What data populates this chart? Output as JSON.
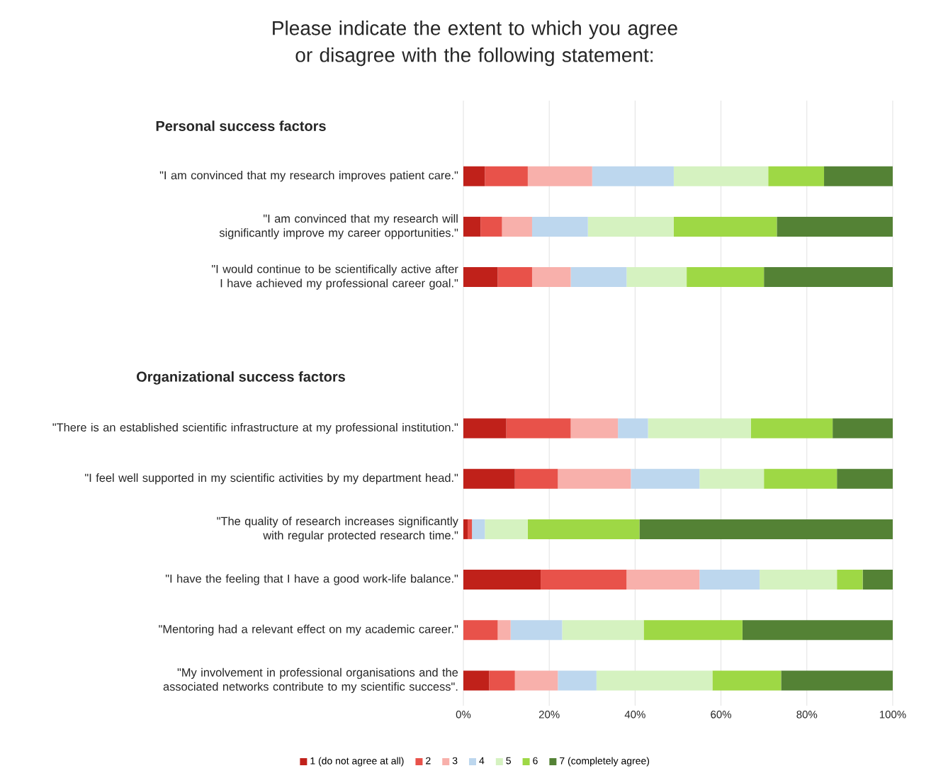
{
  "chart_data": {
    "type": "bar",
    "orientation": "horizontal",
    "stacked": true,
    "title": "Please indicate the extent to which you agree or disagree with the following statement:",
    "annotations": [
      "Personal success factors",
      "Organizational success factors"
    ],
    "categories": [
      null,
      "\"I am convinced that my research improves patient care.\"",
      "\"I am convinced that my research will significantly improve my career opportunities.\"",
      "\"I would continue to be scientifically active after I have achieved my professional career goal.\"",
      null,
      null,
      "\"There is an established scientific infrastructure at my professional institution.\"",
      "\"I feel well supported in my scientific activities by my department head.\"",
      "\"The quality of research increases significantly with regular protected research time.\"",
      "\"I have the feeling that I have a good work-life balance.\"",
      "\"Mentoring had a relevant effect on my academic career.\"",
      "\"My involvement in professional organisations and the associated networks contribute to my scientific success\"."
    ],
    "series": [
      {
        "name": "1 (do not agree at all)",
        "color": "#c0211a",
        "values": [
          null,
          5,
          4,
          8,
          null,
          null,
          10,
          12,
          1,
          18,
          0,
          6
        ]
      },
      {
        "name": "2",
        "color": "#e8524a",
        "values": [
          null,
          10,
          5,
          8,
          null,
          null,
          15,
          10,
          1,
          20,
          8,
          6
        ]
      },
      {
        "name": "3",
        "color": "#f8b0ab",
        "values": [
          null,
          15,
          7,
          9,
          null,
          null,
          11,
          17,
          0,
          17,
          3,
          10
        ]
      },
      {
        "name": "4",
        "color": "#bdd7ee",
        "values": [
          null,
          19,
          13,
          13,
          null,
          null,
          7,
          16,
          3,
          14,
          12,
          9
        ]
      },
      {
        "name": "5",
        "color": "#d5f2c0",
        "values": [
          null,
          22,
          20,
          14,
          null,
          null,
          24,
          15,
          10,
          18,
          19,
          27
        ]
      },
      {
        "name": "6",
        "color": "#9ed845",
        "values": [
          null,
          13,
          24,
          18,
          null,
          null,
          19,
          17,
          26,
          6,
          23,
          16
        ]
      },
      {
        "name": "7 (completely agree)",
        "color": "#548235",
        "values": [
          null,
          16,
          27,
          30,
          null,
          null,
          14,
          13,
          59,
          7,
          35,
          26
        ]
      }
    ],
    "xlim": [
      0,
      100
    ],
    "xticks": [
      {
        "value": 0,
        "label": "0%"
      },
      {
        "value": 20,
        "label": "20%"
      },
      {
        "value": 40,
        "label": "40%"
      },
      {
        "value": 60,
        "label": "60%"
      },
      {
        "value": 80,
        "label": "80%"
      },
      {
        "value": 100,
        "label": "100%"
      }
    ],
    "grid": "x",
    "legend": "bottom"
  }
}
